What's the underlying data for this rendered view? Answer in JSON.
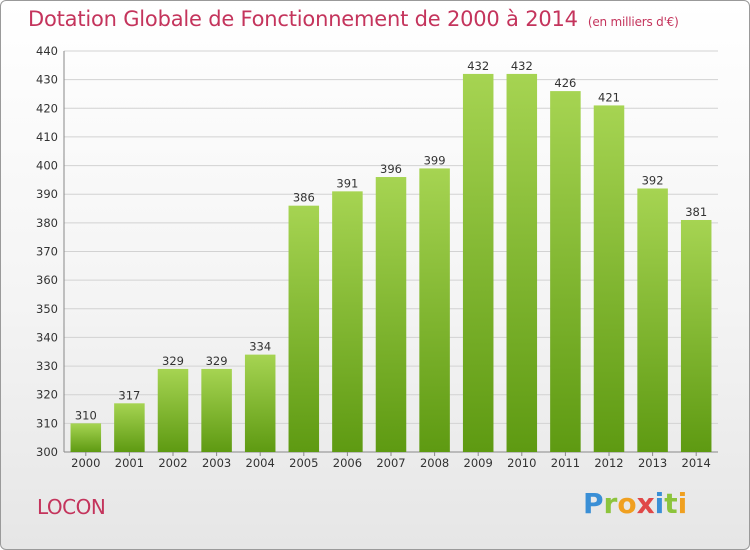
{
  "header": {
    "title": "Dotation Globale de Fonctionnement de 2000 à 2014",
    "subtitle": "(en milliers d'€)"
  },
  "footer": {
    "commune": "LOCON",
    "logo_letters": [
      {
        "ch": "P",
        "color": "#3a8fd6"
      },
      {
        "ch": "r",
        "color": "#8cc43c"
      },
      {
        "ch": "o",
        "color": "#f0a020"
      },
      {
        "ch": "x",
        "color": "#e04848"
      },
      {
        "ch": "i",
        "color": "#3a8fd6"
      },
      {
        "ch": "t",
        "color": "#8cc43c"
      },
      {
        "ch": "i",
        "color": "#f0a020"
      }
    ]
  },
  "colors": {
    "bar_light": "#a6d452",
    "bar_dark": "#5e9a12",
    "grid": "#d2d2d2",
    "axis": "#888888"
  },
  "chart_data": {
    "type": "bar",
    "categories": [
      "2000",
      "2001",
      "2002",
      "2003",
      "2004",
      "2005",
      "2006",
      "2007",
      "2008",
      "2009",
      "2010",
      "2011",
      "2012",
      "2013",
      "2014"
    ],
    "values": [
      310,
      317,
      329,
      329,
      334,
      386,
      391,
      396,
      399,
      432,
      432,
      426,
      421,
      392,
      381
    ],
    "ylim": [
      300,
      440
    ],
    "yticks": [
      300,
      310,
      320,
      330,
      340,
      350,
      360,
      370,
      380,
      390,
      400,
      410,
      420,
      430,
      440
    ],
    "grid": true,
    "title": "Dotation Globale de Fonctionnement de 2000 à 2014",
    "xlabel": "",
    "ylabel": ""
  }
}
